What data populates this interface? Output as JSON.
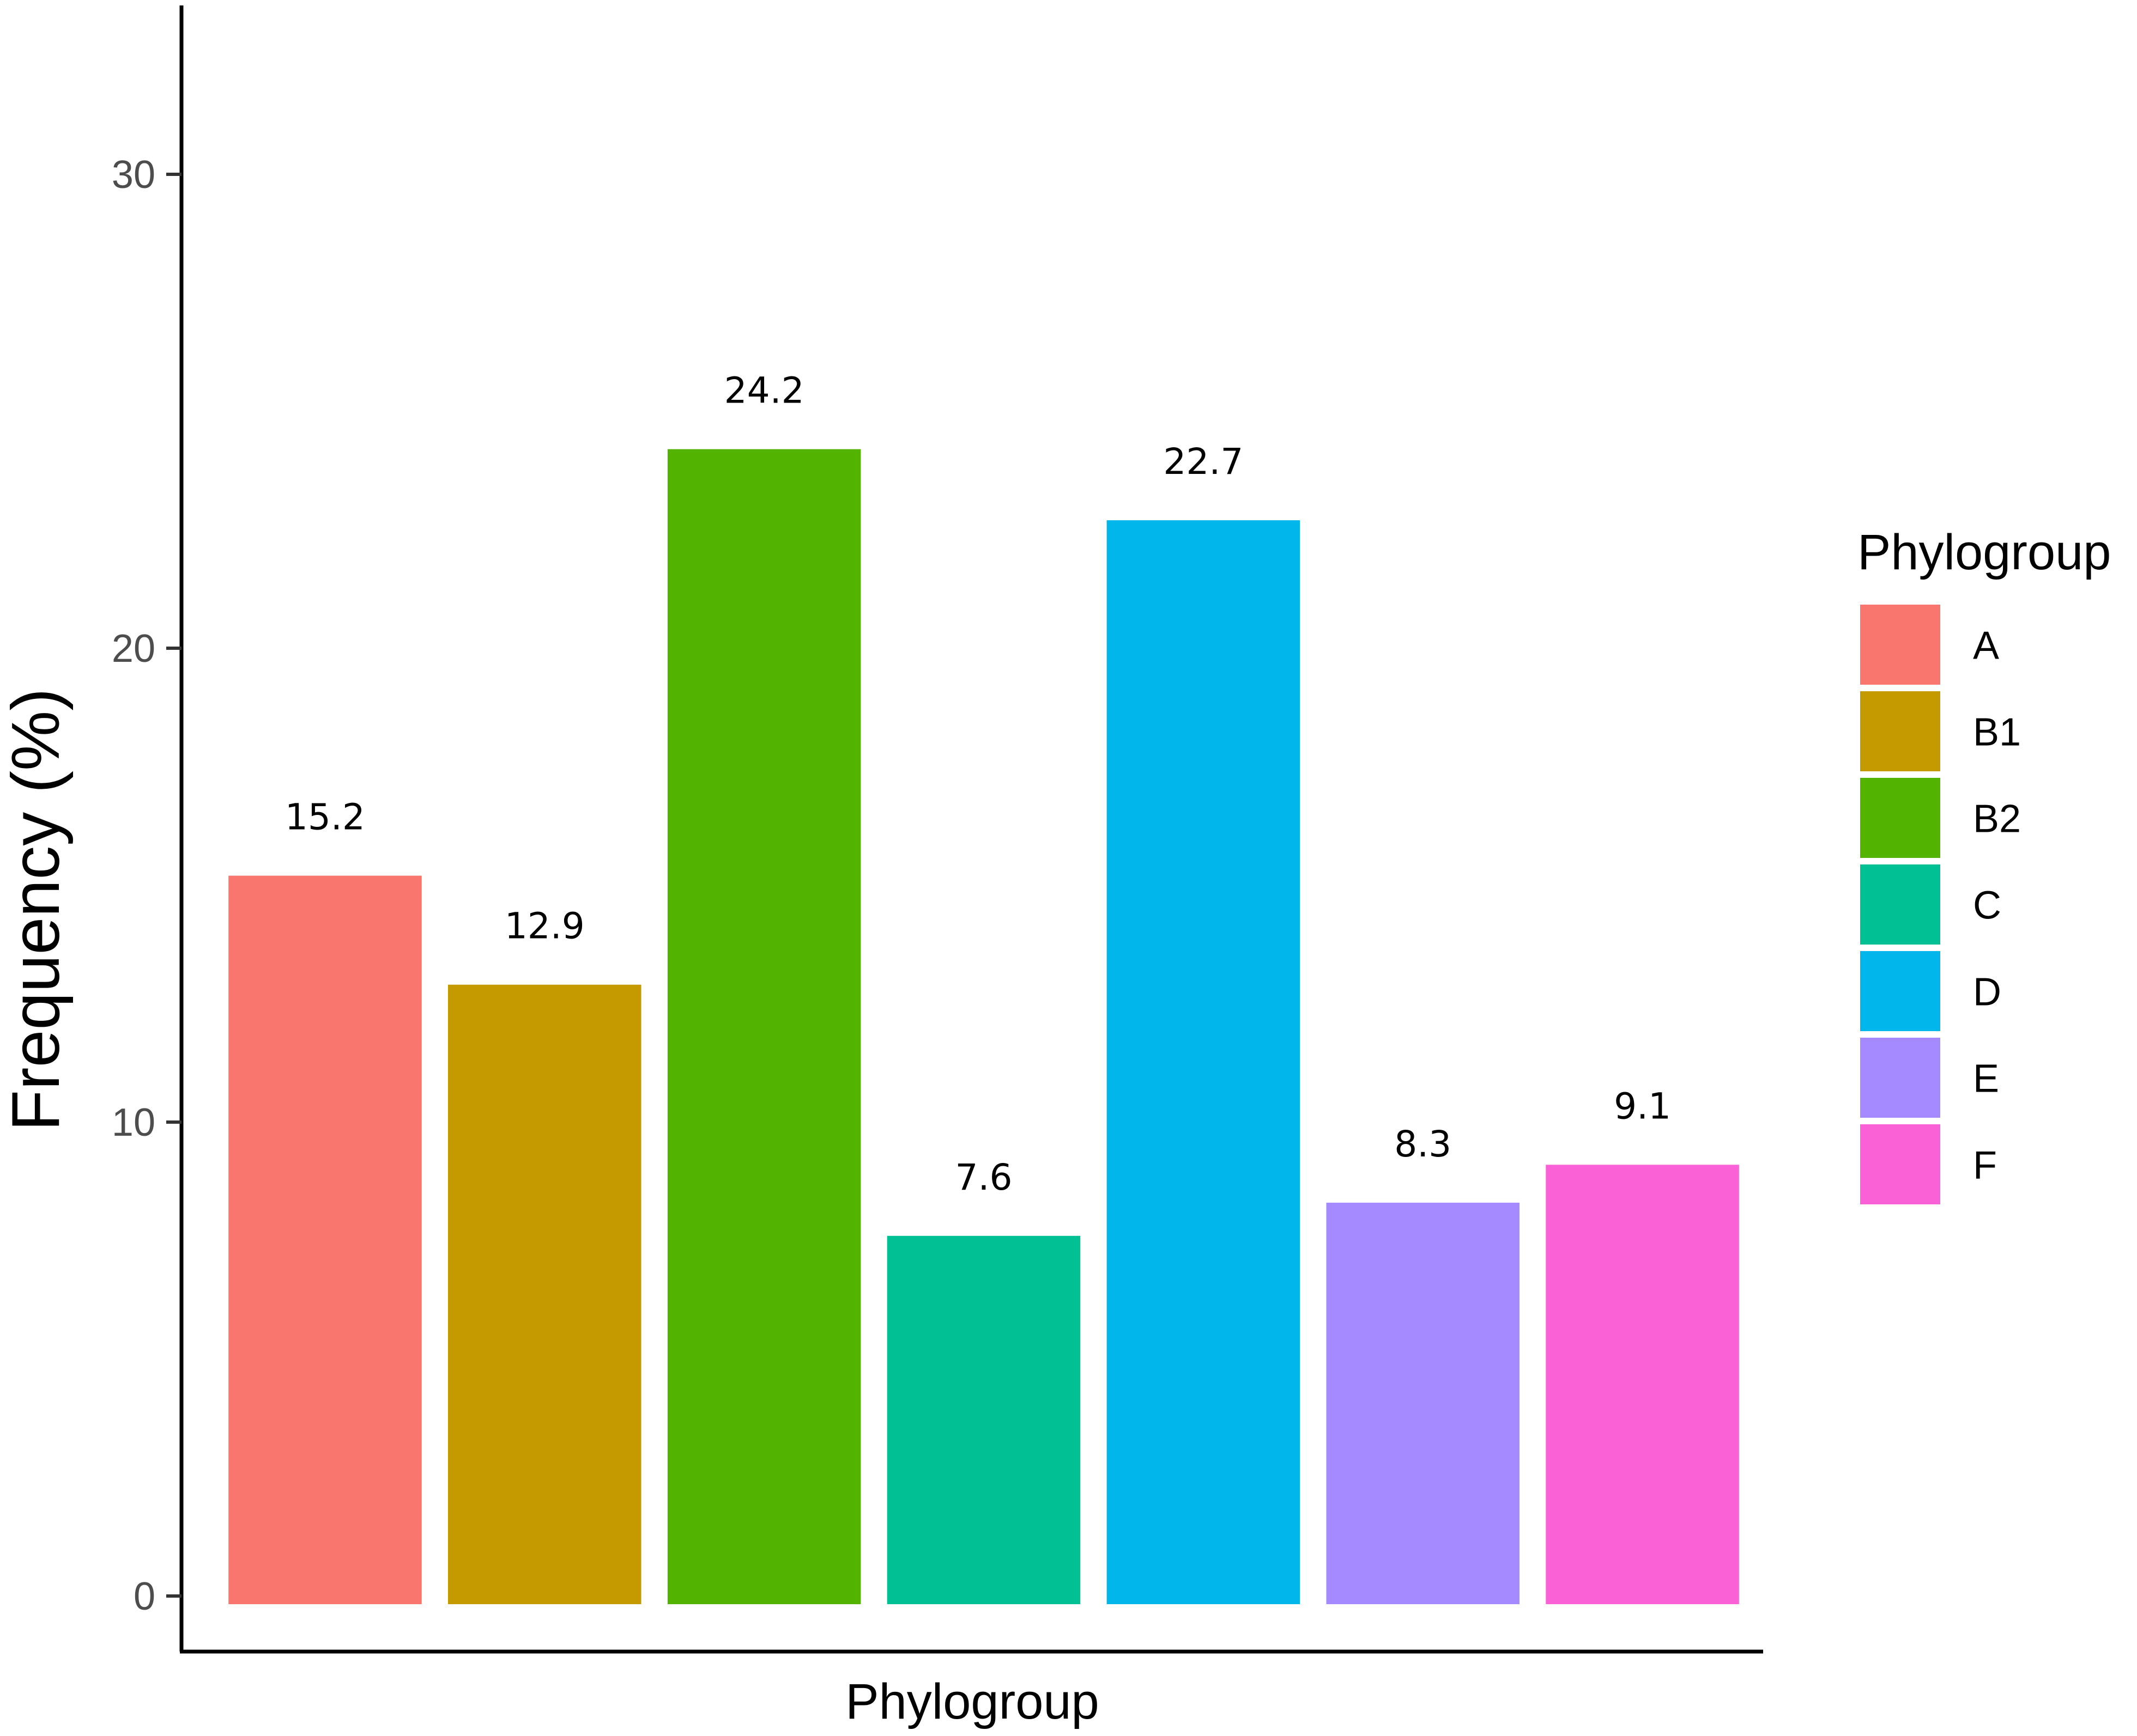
{
  "chart_data": {
    "type": "bar",
    "categories": [
      "A",
      "B1",
      "B2",
      "C",
      "D",
      "E",
      "F"
    ],
    "values": [
      15.2,
      12.9,
      24.2,
      7.6,
      22.7,
      8.3,
      9.1
    ],
    "data_labels": [
      "15.2",
      "12.9",
      "24.2",
      "7.6",
      "22.7",
      "8.3",
      "9.1"
    ],
    "colors": [
      "#F8766D",
      "#C49A00",
      "#53B400",
      "#00C094",
      "#00B6EB",
      "#A58AFF",
      "#FB61D7"
    ],
    "xlabel": "Phylogroup",
    "ylabel": "Frequency (%)",
    "ylim": [
      0,
      33
    ],
    "yticks": [
      0,
      10,
      20,
      30
    ],
    "ytick_labels": [
      "0",
      "10",
      "20",
      "30"
    ],
    "grid": false,
    "legend": {
      "title": "Phylogroup",
      "placement": "right",
      "entries": [
        "A",
        "B1",
        "B2",
        "C",
        "D",
        "E",
        "F"
      ]
    }
  }
}
